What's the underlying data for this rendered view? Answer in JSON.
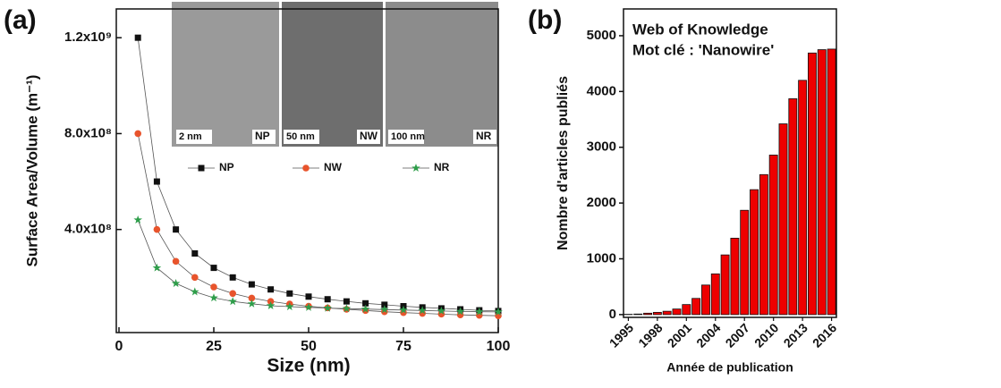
{
  "chart_data": [
    {
      "type": "line",
      "panel_label": "(a)",
      "x_label": "Size (nm)",
      "y_label": "Surface Area/Volume (m⁻¹)",
      "xlim": [
        0,
        100
      ],
      "xticks": [
        0,
        25,
        50,
        75,
        100
      ],
      "ylim": [
        -30000000,
        1320000000
      ],
      "yticks": [
        {
          "value": 400000000,
          "label": "4.0x10⁸"
        },
        {
          "value": 800000000,
          "label": "8.0x10⁸"
        },
        {
          "value": 1200000000,
          "label": "1.2x10⁹"
        }
      ],
      "inset_labels": [
        "2 nm",
        "NP",
        "50 nm",
        "NW",
        "100 nm",
        "NR"
      ],
      "x": [
        5,
        10,
        15,
        20,
        25,
        30,
        35,
        40,
        45,
        50,
        55,
        60,
        65,
        70,
        75,
        80,
        85,
        90,
        95,
        100
      ],
      "series": [
        {
          "name": "NP",
          "color": "#111111",
          "marker": "square",
          "values": [
            1200000000,
            600000000,
            400000000,
            300000000,
            240000000,
            200000000,
            171000000,
            150000000,
            133000000,
            120000000,
            109000000,
            100000000,
            92000000,
            86000000,
            80000000,
            75000000,
            71000000,
            67000000,
            63000000,
            60000000
          ]
        },
        {
          "name": "NW",
          "color": "#e8542c",
          "marker": "circle",
          "values": [
            800000000,
            400000000,
            267000000,
            200000000,
            160000000,
            133000000,
            114000000,
            100000000,
            89000000,
            80000000,
            73000000,
            67000000,
            62000000,
            57000000,
            53000000,
            50000000,
            47000000,
            44000000,
            42000000,
            40000000
          ]
        },
        {
          "name": "NR",
          "color": "#2e9e4a",
          "marker": "star",
          "values": [
            440000000,
            240000000,
            175000000,
            140000000,
            115000000,
            100000000,
            90000000,
            82000000,
            78000000,
            75000000,
            72000000,
            70000000,
            68000000,
            66000000,
            64000000,
            62000000,
            60000000,
            58000000,
            57000000,
            56000000
          ]
        }
      ]
    },
    {
      "type": "bar",
      "panel_label": "(b)",
      "x_label": "Année de publication",
      "y_label": "Nombre d'articles publiés",
      "annotations": [
        "Web of Knowledge",
        "Mot clé : 'Nanowire'"
      ],
      "categories": [
        "1995",
        null,
        null,
        "1998",
        null,
        null,
        "2001",
        null,
        null,
        "2004",
        null,
        null,
        "2007",
        null,
        null,
        "2010",
        null,
        null,
        "2013",
        null,
        null,
        "2016"
      ],
      "values": [
        5,
        10,
        25,
        40,
        60,
        100,
        180,
        290,
        530,
        730,
        1070,
        1370,
        1870,
        2240,
        2510,
        2860,
        3420,
        3870,
        4200,
        4690,
        4750,
        4760
      ],
      "color": "#ee0000",
      "ylim": [
        -50,
        5480
      ],
      "yticks": [
        0,
        1000,
        2000,
        3000,
        4000,
        5000
      ]
    }
  ]
}
